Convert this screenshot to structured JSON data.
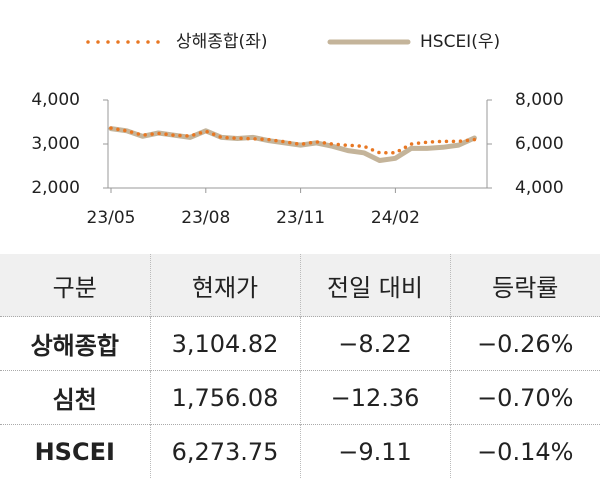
{
  "chart_data": {
    "type": "line",
    "legend": "top",
    "categories": [
      "23/05",
      null,
      null,
      null,
      null,
      null,
      "23/08",
      null,
      null,
      null,
      null,
      null,
      "23/11",
      null,
      null,
      null,
      null,
      null,
      "24/02",
      null,
      null,
      null,
      null,
      null
    ],
    "series": [
      {
        "name": "상해종합(좌)",
        "color": "#e87722",
        "style": "dotted",
        "axis": "y",
        "values": [
          3360,
          3300,
          3200,
          3240,
          3200,
          3180,
          3290,
          3150,
          3130,
          3120,
          3100,
          3050,
          2990,
          3050,
          3000,
          2970,
          2950,
          2800,
          2800,
          3000,
          3040,
          3060,
          3060,
          3100
        ]
      },
      {
        "name": "HSCEI(우)",
        "color": "#c4b49a",
        "style": "solid",
        "axis": "y2",
        "values": [
          6700,
          6600,
          6350,
          6500,
          6400,
          6300,
          6600,
          6300,
          6250,
          6300,
          6150,
          6050,
          5950,
          6050,
          5900,
          5700,
          5600,
          5250,
          5350,
          5800,
          5800,
          5850,
          5950,
          6274
        ]
      }
    ],
    "ylim": [
      2000,
      4000
    ],
    "yticks": [
      {
        "value": 2000,
        "label": "2,000"
      },
      {
        "value": 3000,
        "label": "3,000"
      },
      {
        "value": 4000,
        "label": "4,000"
      }
    ],
    "y2lim": [
      4000,
      8000
    ],
    "y2ticks": [
      {
        "value": 4000,
        "label": "4,000"
      },
      {
        "value": 6000,
        "label": "6,000"
      },
      {
        "value": 8000,
        "label": "8,000"
      }
    ],
    "grid": false
  },
  "table": {
    "header": [
      "구분",
      "현재가",
      "전일 대비",
      "등락률"
    ],
    "rows": [
      [
        "상해종합",
        "3,104.82",
        "−8.22",
        "−0.26%"
      ],
      [
        "심천",
        "1,756.08",
        "−12.36",
        "−0.70%"
      ],
      [
        "HSCEI",
        "6,273.75",
        "−9.11",
        "−0.14%"
      ]
    ]
  }
}
